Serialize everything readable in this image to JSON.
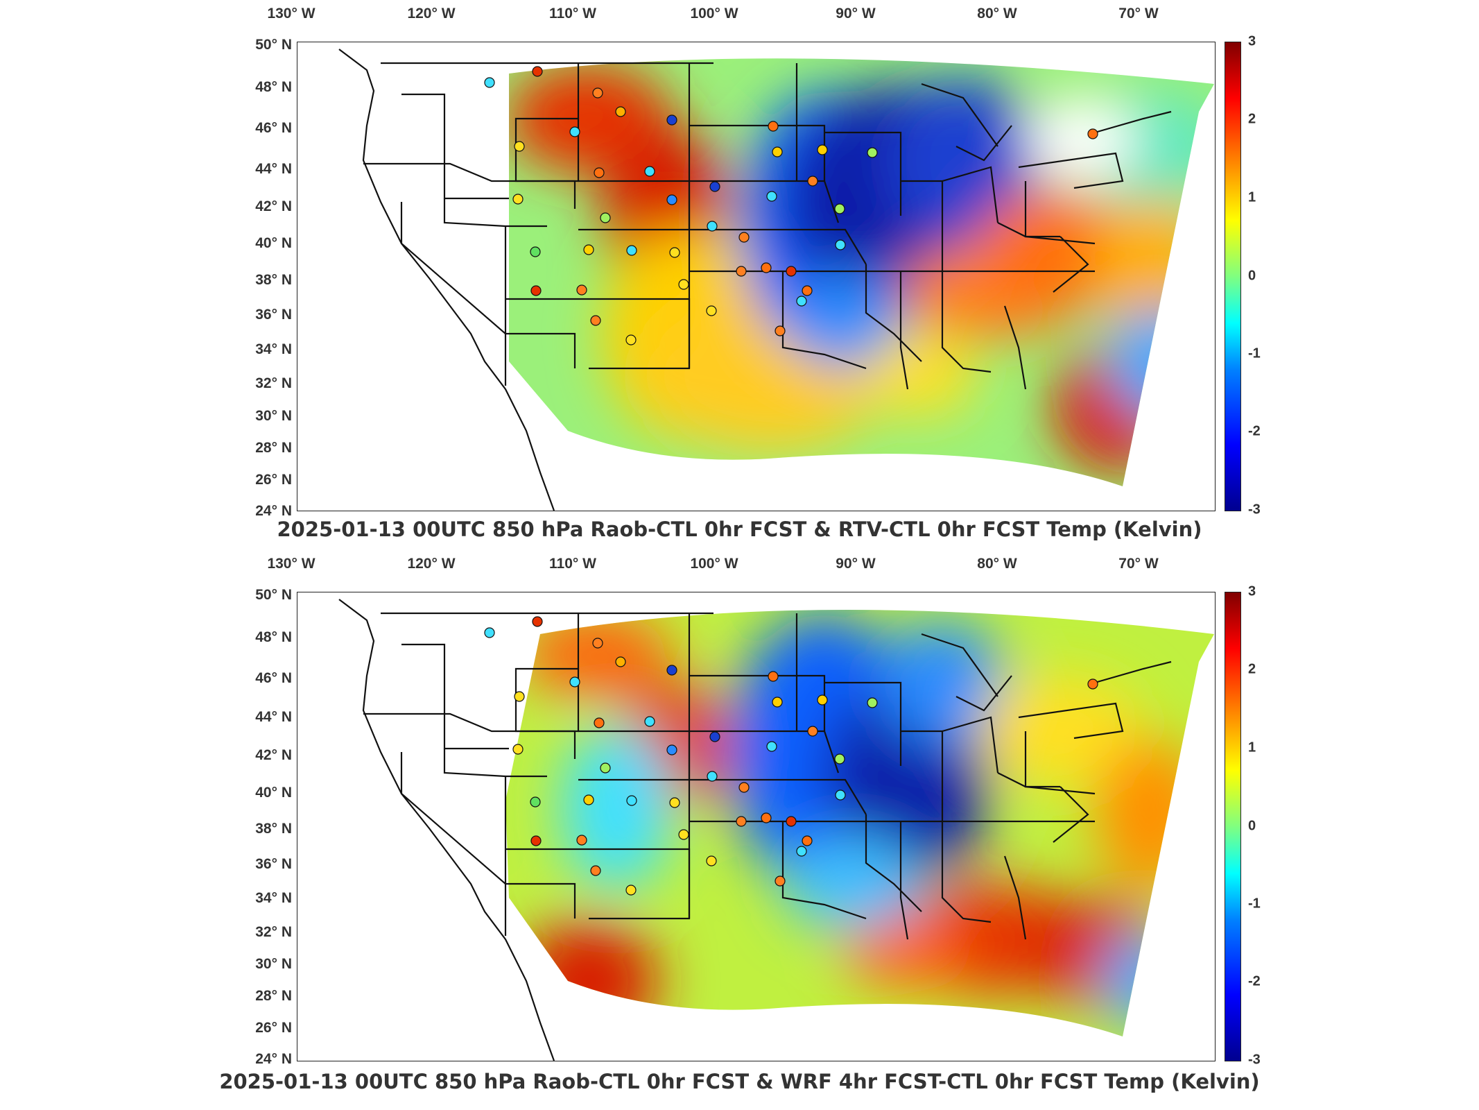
{
  "panels": [
    {
      "id": "top",
      "title": "2025-01-13 00UTC 850 hPa Raob-CTL 0hr FCST & RTV-CTL 0hr FCST Temp (Kelvin)",
      "colors": {
        "cold": "#0a1fa8",
        "cool": "#2a8cff",
        "neutral": "#6ff0a0",
        "warm": "#ffb000",
        "hot": "#e03000"
      }
    },
    {
      "id": "bottom",
      "title": "2025-01-13 00UTC 850 hPa Raob-CTL 0hr FCST & WRF 4hr FCST-CTL 0hr FCST Temp (Kelvin)",
      "colors": {
        "cold": "#0a1fa8",
        "cool": "#2a8cff",
        "neutral": "#6ff0a0",
        "warm": "#ffb000",
        "hot": "#e03000"
      }
    }
  ],
  "lon_labels": [
    "130° W",
    "120° W",
    "110° W",
    "100° W",
    "90° W",
    "80° W",
    "70° W"
  ],
  "lat_labels": [
    "50° N",
    "48° N",
    "46° N",
    "44° N",
    "42° N",
    "40° N",
    "38° N",
    "36° N",
    "34° N",
    "32° N",
    "30° N",
    "28° N",
    "26° N",
    "24° N"
  ],
  "colorbar": {
    "ticks": [
      "3",
      "2",
      "1",
      "0",
      "-1",
      "-2",
      "-3"
    ],
    "range": [
      -3,
      3
    ],
    "colormap": "jet"
  }
}
